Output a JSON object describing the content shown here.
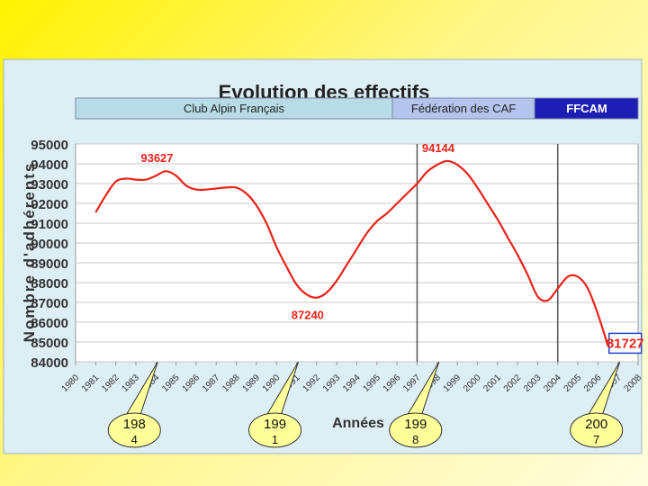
{
  "slide": {
    "colors": {
      "background": "#fff200",
      "panel": "#ddeef4",
      "line": "#e8231a",
      "period_bar": "#b8c8e6",
      "ffcam_bar": "#1e1eb4"
    }
  },
  "periods": [
    {
      "label": "Club Alpin Français",
      "color": "#b8dce6"
    },
    {
      "label": "Fédération des CAF",
      "color": "#b4c4ec"
    },
    {
      "label": "FFCAM",
      "color": "#1e1eb4"
    }
  ],
  "callouts": [
    {
      "line1": "198",
      "line2": "4",
      "year": 1984
    },
    {
      "line1": "199",
      "line2": "1",
      "year": 1991
    },
    {
      "line1": "199",
      "line2": "8",
      "year": 1998
    },
    {
      "line1": "200",
      "line2": "7",
      "year": 2007
    }
  ],
  "chart_data": {
    "type": "line",
    "title": "Evolution des effectifs",
    "xlabel": "Années",
    "ylabel": "Nombre d'adhérents",
    "xlim": [
      1980,
      2008
    ],
    "ylim": [
      84000,
      95000
    ],
    "y_ticks": [
      95000,
      94000,
      93000,
      92000,
      91000,
      90000,
      89000,
      88000,
      87000,
      86000,
      85000,
      84000
    ],
    "y_tick_labels": [
      "95000",
      "94000",
      "93000",
      "92000",
      "91000",
      "90000",
      "89000",
      "88000",
      "87000",
      "86000",
      "85000",
      "84000"
    ],
    "x_tick_labels": [
      "1980",
      "1981",
      "1982",
      "1983",
      "1984",
      "1985",
      "1986",
      "1987",
      "1988",
      "1989",
      "1990",
      "1991",
      "1992",
      "1993",
      "1994",
      "1995",
      "1996",
      "1997",
      "1998",
      "1999",
      "2000",
      "2001",
      "2002",
      "2003",
      "2004",
      "2005",
      "2006",
      "2007",
      "2008"
    ],
    "grid": true,
    "vertical_lines": [
      1997,
      2004
    ],
    "series": [
      {
        "values": [
          [
            1981.0,
            91550
          ],
          [
            1981.5,
            92400
          ],
          [
            1982.0,
            93100
          ],
          [
            1982.5,
            93250
          ],
          [
            1983.0,
            93200
          ],
          [
            1983.5,
            93200
          ],
          [
            1984.0,
            93400
          ],
          [
            1984.5,
            93627
          ],
          [
            1985.0,
            93400
          ],
          [
            1985.5,
            92900
          ],
          [
            1986.0,
            92700
          ],
          [
            1986.5,
            92700
          ],
          [
            1987.0,
            92750
          ],
          [
            1987.5,
            92800
          ],
          [
            1988.0,
            92800
          ],
          [
            1988.5,
            92500
          ],
          [
            1989.0,
            91900
          ],
          [
            1989.5,
            91000
          ],
          [
            1990.0,
            89800
          ],
          [
            1990.5,
            88800
          ],
          [
            1991.0,
            87900
          ],
          [
            1991.5,
            87400
          ],
          [
            1992.0,
            87240
          ],
          [
            1992.5,
            87500
          ],
          [
            1993.0,
            88100
          ],
          [
            1993.5,
            88900
          ],
          [
            1994.0,
            89700
          ],
          [
            1994.5,
            90500
          ],
          [
            1995.0,
            91100
          ],
          [
            1995.5,
            91500
          ],
          [
            1996.0,
            92000
          ],
          [
            1996.5,
            92500
          ],
          [
            1997.0,
            93000
          ],
          [
            1997.5,
            93600
          ],
          [
            1998.0,
            93950
          ],
          [
            1998.5,
            94144
          ],
          [
            1999.0,
            93950
          ],
          [
            1999.5,
            93500
          ],
          [
            2000.0,
            92800
          ],
          [
            2000.5,
            92000
          ],
          [
            2001.0,
            91200
          ],
          [
            2001.5,
            90300
          ],
          [
            2002.0,
            89400
          ],
          [
            2002.5,
            88400
          ],
          [
            2003.0,
            87300
          ],
          [
            2003.5,
            87100
          ],
          [
            2004.0,
            87700
          ],
          [
            2004.5,
            88300
          ],
          [
            2005.0,
            88300
          ],
          [
            2005.5,
            87700
          ],
          [
            2006.0,
            86400
          ],
          [
            2006.5,
            84800
          ]
        ]
      }
    ],
    "annotations": [
      {
        "text": "93627",
        "x": 1984.5,
        "y": 93627,
        "boxed": false
      },
      {
        "text": "87240",
        "x": 1992.0,
        "y": 87240,
        "boxed": false
      },
      {
        "text": "94144",
        "x": 1998.5,
        "y": 94144,
        "boxed": false
      },
      {
        "text": "81727",
        "x": 2007.0,
        "y": 84800,
        "boxed": true
      }
    ]
  }
}
